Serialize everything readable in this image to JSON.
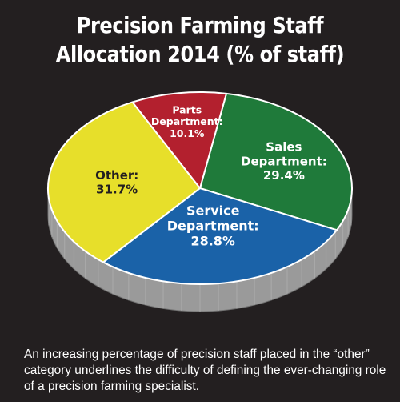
{
  "title_line1": "Precision Farming Staff",
  "title_line2": "Allocation 2014 (% of staff)",
  "caption": "An increasing percentage of precision staff placed in the “other” category underlines the difficulty of defining the ever-changing role of a precision farming specialist.",
  "chart_data": {
    "type": "pie",
    "title": "Precision Farming Staff Allocation 2014 (% of staff)",
    "slices": [
      {
        "label_lines": [
          "Sales",
          "Department:"
        ],
        "value": 29.4,
        "value_text": "29.4%",
        "color": "#1f7a3a"
      },
      {
        "label_lines": [
          "Service",
          "Department:"
        ],
        "value": 28.8,
        "value_text": "28.8%",
        "color": "#1a62a8"
      },
      {
        "label_lines": [
          "Other:"
        ],
        "value": 31.7,
        "value_text": "31.7%",
        "color": "#e7df2a"
      },
      {
        "label_lines": [
          "Parts",
          "Department:"
        ],
        "value": 10.1,
        "value_text": "10.1%",
        "color": "#b3202e"
      }
    ],
    "side_color": "#9a9a9a",
    "legend": "none",
    "style": "3d-tilted"
  }
}
